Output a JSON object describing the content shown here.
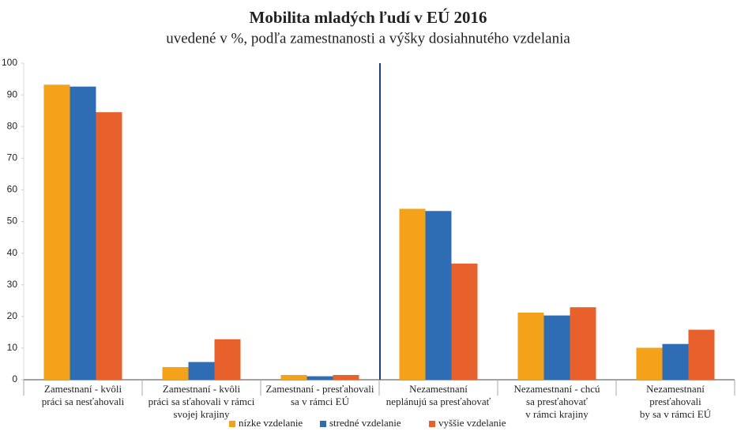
{
  "chart_data": {
    "type": "bar",
    "title": "Mobilita mladých ľudí v EÚ 2016",
    "subtitle": "uvedené v %, podľa zamestnanosti a výšky dosiahnutého vzdelania",
    "categories": [
      "Zamestnaní - kvôli\npráci sa nesťahovali",
      "Zamestnaní - kvôli\npráci sa sťahovali v rámci\nsvojej krajiny",
      "Zamestnaní - presťahovali\nsa v rámci EÚ",
      "Nezamestnaní\nneplánujú sa presťahovať",
      "Nezamestnaní - chcú\nsa presťahovať\nv rámci krajiny",
      "Nezamestnaní\npresťahovali\nby sa v rámci EÚ"
    ],
    "series": [
      {
        "name": "nízke vzdelanie",
        "color": "#f5a21b",
        "values": [
          93.2,
          4,
          1.5,
          54,
          21.2,
          10.1
        ]
      },
      {
        "name": "stredné vzdelanie",
        "color": "#2e6db4",
        "values": [
          92.6,
          5.6,
          1.1,
          53.3,
          20.3,
          11.3
        ]
      },
      {
        "name": "vyššie vzdelanie",
        "color": "#e8602c",
        "values": [
          84.5,
          12.8,
          1.5,
          36.7,
          22.9,
          15.8
        ]
      }
    ],
    "ylim": [
      0,
      100
    ],
    "yticks": [
      0,
      10,
      20,
      30,
      40,
      50,
      60,
      70,
      80,
      90,
      100
    ]
  }
}
